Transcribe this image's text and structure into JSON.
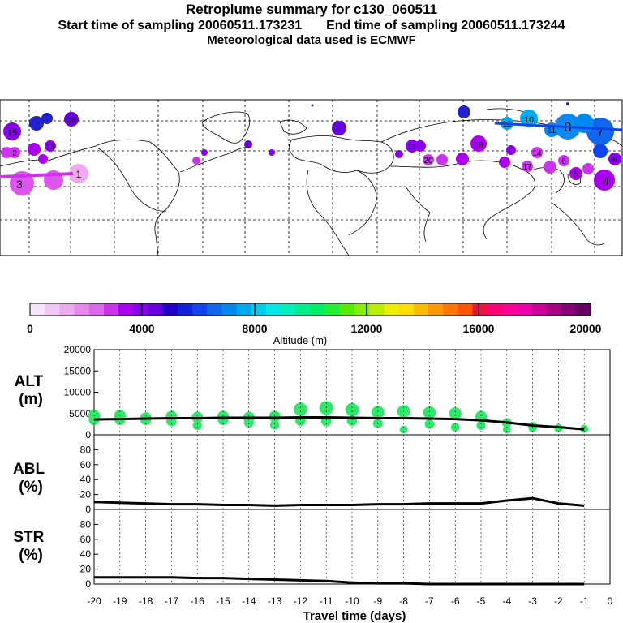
{
  "header": {
    "title": "Retroplume summary for c130_060511",
    "start_label": "Start time of sampling 20060511.173231",
    "end_label": "End time of sampling 20060511.173244",
    "met_label": "Meteorological data used is ECMWF"
  },
  "colors": {
    "alt_points": "#2ee86a",
    "line": "#000000",
    "grid": "#000000"
  },
  "colorbar": {
    "label": "Altitude (m)",
    "ticks": [
      "0",
      "4000",
      "8000",
      "12000",
      "16000",
      "20000"
    ],
    "colors": [
      "#f8e4f8",
      "#f4c8f4",
      "#eeaaee",
      "#e888ee",
      "#dd66ee",
      "#cc33ee",
      "#aa00ee",
      "#8800ee",
      "#6600dd",
      "#2200cc",
      "#1122dd",
      "#1144ee",
      "#1166ee",
      "#0088ee",
      "#00aaee",
      "#00ccee",
      "#00e8e8",
      "#00eebb",
      "#00ee88",
      "#00ee66",
      "#22ee33",
      "#55ee00",
      "#88ee00",
      "#bbee00",
      "#eeee00",
      "#ffdd00",
      "#ffbb00",
      "#ff9900",
      "#ff7700",
      "#ff5500",
      "#ee1144",
      "#ff0077",
      "#ff0099",
      "#ee00aa",
      "#cc0099",
      "#aa0088",
      "#880077",
      "#660066"
    ]
  },
  "map": {
    "plume_numbers": [
      "1",
      "2",
      "3",
      "4",
      "5",
      "6",
      "7",
      "8",
      "9",
      "10",
      "11",
      "12",
      "13",
      "14",
      "15",
      "16",
      "17",
      "18",
      "19",
      "20"
    ]
  },
  "chart_data": [
    {
      "type": "scatter+line",
      "panel": "ALT",
      "ylabel": "ALT\n(m)",
      "ylim": [
        0,
        20000
      ],
      "yticks": [
        0,
        5000,
        10000,
        15000,
        20000
      ],
      "x": [
        -20,
        -19,
        -18,
        -17,
        -16,
        -15,
        -14,
        -13,
        -12,
        -11,
        -10,
        -9,
        -8,
        -7,
        -6,
        -5,
        -4,
        -3,
        -2,
        -1
      ],
      "line_values": [
        3600,
        3700,
        3800,
        3900,
        3900,
        4000,
        4000,
        4000,
        4100,
        4100,
        4000,
        3900,
        3900,
        3800,
        3700,
        3400,
        2900,
        2200,
        1800,
        1300
      ],
      "points": [
        {
          "x": -20,
          "y": 3500
        },
        {
          "x": -20,
          "y": 4500
        },
        {
          "x": -19,
          "y": 3500
        },
        {
          "x": -19,
          "y": 4500
        },
        {
          "x": -18,
          "y": 3500
        },
        {
          "x": -18,
          "y": 4000
        },
        {
          "x": -17,
          "y": 3200
        },
        {
          "x": -17,
          "y": 4300
        },
        {
          "x": -16,
          "y": 2200
        },
        {
          "x": -16,
          "y": 4100
        },
        {
          "x": -15,
          "y": 3500
        },
        {
          "x": -15,
          "y": 4300
        },
        {
          "x": -14,
          "y": 2900
        },
        {
          "x": -14,
          "y": 4100
        },
        {
          "x": -13,
          "y": 2300
        },
        {
          "x": -13,
          "y": 4300
        },
        {
          "x": -12,
          "y": 3300
        },
        {
          "x": -12,
          "y": 6000
        },
        {
          "x": -11,
          "y": 3200
        },
        {
          "x": -11,
          "y": 6300
        },
        {
          "x": -10,
          "y": 3300
        },
        {
          "x": -10,
          "y": 5900
        },
        {
          "x": -9,
          "y": 2700
        },
        {
          "x": -9,
          "y": 5300
        },
        {
          "x": -8,
          "y": 1200
        },
        {
          "x": -8,
          "y": 5500
        },
        {
          "x": -7,
          "y": 2500
        },
        {
          "x": -7,
          "y": 5200
        },
        {
          "x": -6,
          "y": 1800
        },
        {
          "x": -6,
          "y": 5000
        },
        {
          "x": -5,
          "y": 2200
        },
        {
          "x": -5,
          "y": 4300
        },
        {
          "x": -4,
          "y": 1200
        },
        {
          "x": -4,
          "y": 2800
        },
        {
          "x": -3,
          "y": 1600
        },
        {
          "x": -3,
          "y": 2000
        },
        {
          "x": -2,
          "y": 1600
        },
        {
          "x": -1,
          "y": 1400
        }
      ]
    },
    {
      "type": "line",
      "panel": "ABL",
      "ylabel": "ABL\n(%)",
      "ylim": [
        0,
        100
      ],
      "yticks": [
        0,
        20,
        40,
        60,
        80
      ],
      "x": [
        -20,
        -19,
        -18,
        -17,
        -16,
        -15,
        -14,
        -13,
        -12,
        -11,
        -10,
        -9,
        -8,
        -7,
        -6,
        -5,
        -4,
        -3,
        -2,
        -1
      ],
      "values": [
        10,
        9,
        8,
        7,
        7,
        6,
        6,
        5,
        6,
        6,
        6,
        7,
        7,
        8,
        8,
        8,
        12,
        15,
        8,
        5
      ]
    },
    {
      "type": "line",
      "panel": "STR",
      "ylabel": "STR\n(%)",
      "ylim": [
        0,
        100
      ],
      "yticks": [
        0,
        20,
        40,
        60,
        80
      ],
      "x": [
        -20,
        -19,
        -18,
        -17,
        -16,
        -15,
        -14,
        -13,
        -12,
        -11,
        -10,
        -9,
        -8,
        -7,
        -6,
        -5,
        -4,
        -3,
        -2,
        -1
      ],
      "values": [
        9,
        9,
        9,
        9,
        8,
        8,
        7,
        6,
        5,
        4,
        2,
        1,
        1,
        0,
        0,
        0,
        0,
        0,
        0,
        0
      ],
      "xlabel": "Travel time (days)",
      "xticks": [
        "-20",
        "-19",
        "-18",
        "-17",
        "-16",
        "-15",
        "-14",
        "-13",
        "-12",
        "-11",
        "-10",
        "-9",
        "-8",
        "-7",
        "-6",
        "-5",
        "-4",
        "-3",
        "-2",
        "-1",
        "0"
      ]
    }
  ]
}
